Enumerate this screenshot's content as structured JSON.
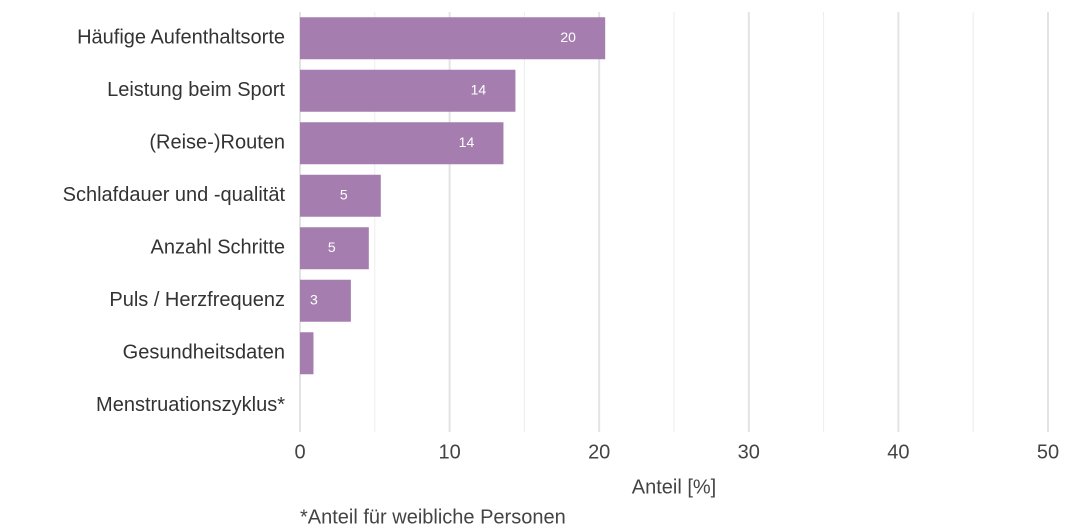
{
  "chart_data": {
    "type": "barh",
    "categories": [
      "Häufige Aufenthaltsorte",
      "Leistung beim Sport",
      "(Reise-)Routen",
      "Schlafdauer und -qualität",
      "Anzahl Schritte",
      "Puls / Herzfrequenz",
      "Gesundheitsdaten",
      "Menstruationszyklus*"
    ],
    "values": [
      20.4,
      14.4,
      13.6,
      5.4,
      4.6,
      3.4,
      0.9,
      0
    ],
    "value_labels": [
      "20",
      "14",
      "14",
      "5",
      "5",
      "3",
      null,
      null
    ],
    "color": "#a57daf",
    "xlim": [
      0,
      50
    ],
    "xticks": [
      0,
      10,
      20,
      30,
      40,
      50
    ],
    "xticks_minor": [
      5,
      15,
      25,
      35,
      45
    ],
    "grid": true,
    "xlabel": "Anteil [%]",
    "footnote": "*Anteil für weibliche Personen"
  }
}
